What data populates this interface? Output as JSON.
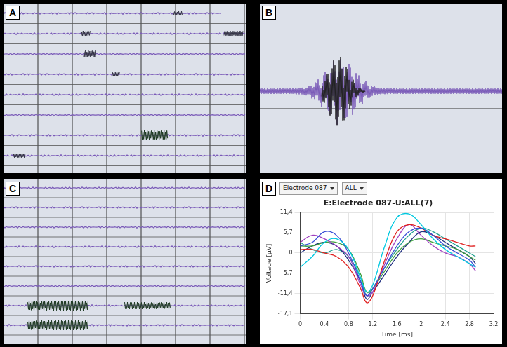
{
  "panels": [
    {
      "label": "A"
    },
    {
      "label": "B"
    },
    {
      "label": "C"
    },
    {
      "label": "D",
      "controls": [
        "Electrode 087",
        "ALL"
      ]
    }
  ],
  "chart_data": {
    "type": "line",
    "title": "E:Electrode 087-U:ALL(7)",
    "x_label": "Time [ms]",
    "y_label": "Voltage [µV]",
    "x": [
      0,
      0.2,
      0.4,
      0.6,
      0.8,
      1.0,
      1.1,
      1.2,
      1.4,
      1.6,
      1.8,
      2.0,
      2.2,
      2.4,
      2.6,
      2.8,
      2.9
    ],
    "series": [
      {
        "color": "#00c8e0",
        "values": [
          -4,
          -1,
          3,
          4,
          1,
          -7,
          -11,
          -9,
          2,
          10,
          11,
          8,
          4,
          1,
          -1,
          -3,
          -4
        ]
      },
      {
        "color": "#3a4fd6",
        "values": [
          2,
          3,
          6,
          5,
          0,
          -8,
          -12,
          -10,
          -4,
          2,
          6,
          7,
          5,
          2,
          0,
          -2,
          -4
        ]
      },
      {
        "color": "#e02020",
        "values": [
          1,
          1,
          0,
          -1,
          -4,
          -10,
          -14,
          -12,
          -2,
          6,
          8,
          7,
          5,
          4,
          3,
          2,
          2
        ]
      },
      {
        "color": "#a040c0",
        "values": [
          3,
          5,
          4,
          2,
          -1,
          -9,
          -12,
          -11,
          -3,
          4,
          8,
          5,
          2,
          0,
          -1,
          -3,
          -5
        ]
      },
      {
        "color": "#40a040",
        "values": [
          2,
          2,
          3,
          3,
          1,
          -6,
          -11,
          -10,
          -5,
          0,
          3,
          4,
          3,
          2,
          1,
          -1,
          -2
        ]
      },
      {
        "color": "#203080",
        "values": [
          0,
          2,
          3,
          2,
          -2,
          -8,
          -13,
          -11,
          -6,
          -1,
          3,
          6,
          5,
          3,
          1,
          -1,
          -3
        ]
      },
      {
        "color": "#20a090",
        "values": [
          3,
          1,
          0,
          1,
          -1,
          -7,
          -12,
          -10,
          -4,
          1,
          5,
          7,
          6,
          4,
          2,
          0,
          -1
        ]
      }
    ],
    "xlim": [
      0,
      3.2
    ],
    "xticks": [
      0,
      0.4,
      0.8,
      1.2,
      1.6,
      2,
      2.4,
      2.8,
      3.2
    ],
    "ylim": [
      -17.1,
      11.4
    ],
    "yticks": [
      {
        "value": -17.1,
        "label": "-17,1"
      },
      {
        "value": -11.4,
        "label": "-11,4"
      },
      {
        "value": -5.7,
        "label": "-5,7"
      },
      0,
      {
        "value": 5.7,
        "label": "5,7"
      },
      {
        "value": 11.4,
        "label": "11,4"
      }
    ],
    "grid": true
  }
}
